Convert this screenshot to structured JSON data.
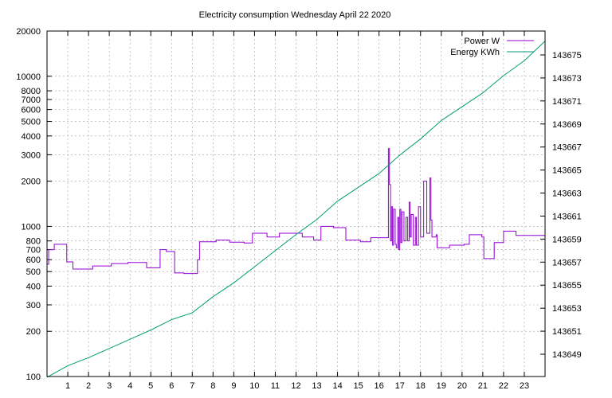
{
  "chart_data": {
    "type": "line",
    "title": "Electricity consumption Wednesday April 22 2020",
    "xlabel": "",
    "ylabel": "",
    "y2label": "",
    "grid": true,
    "legend_position": "top-right",
    "x_range": [
      0,
      24
    ],
    "x_ticks": [
      1,
      2,
      3,
      4,
      5,
      6,
      7,
      8,
      9,
      10,
      11,
      12,
      13,
      14,
      15,
      16,
      17,
      18,
      19,
      20,
      21,
      22,
      23
    ],
    "x_tick_labels": [
      "1",
      "2",
      "3",
      "4",
      "5",
      "6",
      "7",
      "8",
      "9",
      "10",
      "11",
      "12",
      "13",
      "14",
      "15",
      "16",
      "17",
      "18",
      "19",
      "20",
      "21",
      "22",
      "23"
    ],
    "y_scale": "log",
    "y_range": [
      100,
      20000
    ],
    "y_ticks": [
      100,
      200,
      300,
      400,
      500,
      600,
      700,
      800,
      1000,
      2000,
      3000,
      4000,
      5000,
      6000,
      7000,
      8000,
      10000,
      20000
    ],
    "y_tick_labels": [
      "100",
      "200",
      "300",
      "400",
      "500",
      "600",
      "700",
      "800",
      "1000",
      "2000",
      "3000",
      "4000",
      "5000",
      "6000",
      "7000",
      "8000",
      "10000",
      "20000"
    ],
    "y2_scale": "log",
    "y2_ticks": [
      143649,
      143651,
      143653,
      143655,
      143657,
      143659,
      143661,
      143663,
      143665,
      143667,
      143669,
      143671,
      143673,
      143675
    ],
    "y2_tick_labels": [
      "143649",
      "143651",
      "143653",
      "143655",
      "143657",
      "143659",
      "143661",
      "143663",
      "143665",
      "143667",
      "143669",
      "143671",
      "143673",
      "143675"
    ],
    "series": [
      {
        "name": "Power W",
        "axis": "y",
        "color": "#9400d3",
        "step": true,
        "points": [
          [
            0.0,
            560
          ],
          [
            0.08,
            700
          ],
          [
            0.35,
            760
          ],
          [
            0.95,
            580
          ],
          [
            1.25,
            520
          ],
          [
            2.2,
            545
          ],
          [
            3.1,
            565
          ],
          [
            3.9,
            575
          ],
          [
            4.8,
            530
          ],
          [
            5.45,
            700
          ],
          [
            5.75,
            680
          ],
          [
            6.15,
            490
          ],
          [
            6.6,
            485
          ],
          [
            7.25,
            600
          ],
          [
            7.35,
            790
          ],
          [
            8.15,
            810
          ],
          [
            8.8,
            785
          ],
          [
            9.5,
            775
          ],
          [
            9.9,
            900
          ],
          [
            10.6,
            850
          ],
          [
            11.2,
            900
          ],
          [
            12.3,
            850
          ],
          [
            12.85,
            810
          ],
          [
            13.2,
            1000
          ],
          [
            13.8,
            980
          ],
          [
            14.4,
            810
          ],
          [
            15.1,
            790
          ],
          [
            15.6,
            840
          ],
          [
            16.3,
            840
          ],
          [
            16.45,
            3300
          ],
          [
            16.5,
            1900
          ],
          [
            16.55,
            800
          ],
          [
            16.6,
            1350
          ],
          [
            16.65,
            750
          ],
          [
            16.7,
            1300
          ],
          [
            16.78,
            760
          ],
          [
            16.83,
            720
          ],
          [
            16.9,
            1150
          ],
          [
            16.95,
            700
          ],
          [
            17.0,
            1300
          ],
          [
            17.05,
            780
          ],
          [
            17.1,
            1250
          ],
          [
            17.2,
            800
          ],
          [
            17.3,
            1150
          ],
          [
            17.38,
            800
          ],
          [
            17.45,
            1450
          ],
          [
            17.5,
            850
          ],
          [
            17.55,
            1200
          ],
          [
            17.65,
            750
          ],
          [
            17.75,
            1150
          ],
          [
            17.8,
            750
          ],
          [
            17.9,
            1350
          ],
          [
            18.0,
            850
          ],
          [
            18.15,
            2000
          ],
          [
            18.3,
            900
          ],
          [
            18.45,
            2100
          ],
          [
            18.5,
            1100
          ],
          [
            18.55,
            850
          ],
          [
            18.75,
            880
          ],
          [
            18.8,
            720
          ],
          [
            19.4,
            750
          ],
          [
            20.1,
            760
          ],
          [
            20.35,
            880
          ],
          [
            20.95,
            850
          ],
          [
            21.05,
            610
          ],
          [
            21.55,
            780
          ],
          [
            22.0,
            930
          ],
          [
            22.6,
            870
          ],
          [
            23.0,
            870
          ]
        ]
      },
      {
        "name": "Energy KWh",
        "axis": "y2",
        "color": "#009e73",
        "step": false,
        "points": [
          [
            0,
            143647.0
          ],
          [
            1,
            143648.0
          ],
          [
            2,
            143648.7
          ],
          [
            3,
            143649.5
          ],
          [
            4,
            143650.3
          ],
          [
            5,
            143651.1
          ],
          [
            6,
            143652.0
          ],
          [
            7,
            143652.6
          ],
          [
            8,
            143654.0
          ],
          [
            9,
            143655.2
          ],
          [
            10,
            143656.6
          ],
          [
            11,
            143658.0
          ],
          [
            12,
            143659.4
          ],
          [
            13,
            143660.7
          ],
          [
            14,
            143662.3
          ],
          [
            15,
            143663.5
          ],
          [
            16,
            143664.7
          ],
          [
            17,
            143666.3
          ],
          [
            18,
            143667.7
          ],
          [
            19,
            143669.3
          ],
          [
            20,
            143670.5
          ],
          [
            21,
            143671.7
          ],
          [
            22,
            143673.2
          ],
          [
            23,
            143674.5
          ],
          [
            24,
            143676.2
          ]
        ]
      }
    ]
  }
}
